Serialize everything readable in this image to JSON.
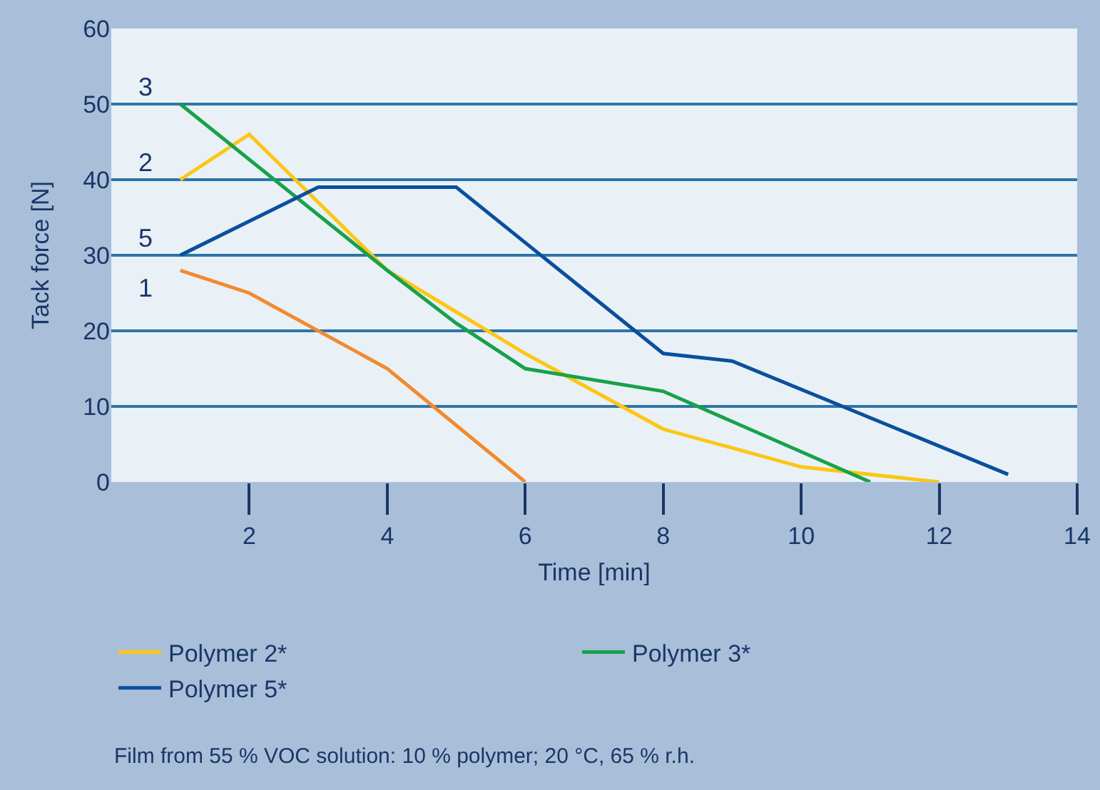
{
  "chart_data": {
    "type": "line",
    "xlabel": "Time [min]",
    "ylabel": "Tack force [N]",
    "xlim": [
      0,
      14
    ],
    "xticks": [
      2,
      4,
      6,
      8,
      10,
      12,
      14
    ],
    "ylim": [
      0,
      60
    ],
    "yticks": [
      0,
      10,
      20,
      30,
      40,
      50,
      60
    ],
    "grid": "y",
    "legend": "bottom",
    "marker": "none",
    "line_style": "solid",
    "series": [
      {
        "color": "#f28a2e",
        "x": [
          1,
          2,
          4,
          6
        ],
        "values": [
          28,
          25,
          15,
          0
        ]
      },
      {
        "name": "Polymer 2*",
        "color": "#fcc614",
        "x": [
          1,
          2,
          4,
          5,
          6,
          8,
          10,
          12
        ],
        "values": [
          40,
          46,
          28,
          22.5,
          17,
          7,
          2,
          0
        ]
      },
      {
        "name": "Polymer 3*",
        "color": "#17a24a",
        "x": [
          1,
          4,
          5,
          6,
          8,
          11
        ],
        "values": [
          50,
          28,
          21,
          15,
          12,
          0
        ]
      },
      {
        "name": "Polymer 5*",
        "color": "#0b4f9c",
        "x": [
          1,
          3,
          5,
          8,
          9,
          13
        ],
        "values": [
          30,
          39,
          39,
          17,
          16,
          1
        ]
      }
    ],
    "annotations": [
      "1",
      "2",
      "3",
      "5",
      "Film from 55 % VOC solution: 10 % polymer; 20 °C, 65 % r.h."
    ]
  }
}
